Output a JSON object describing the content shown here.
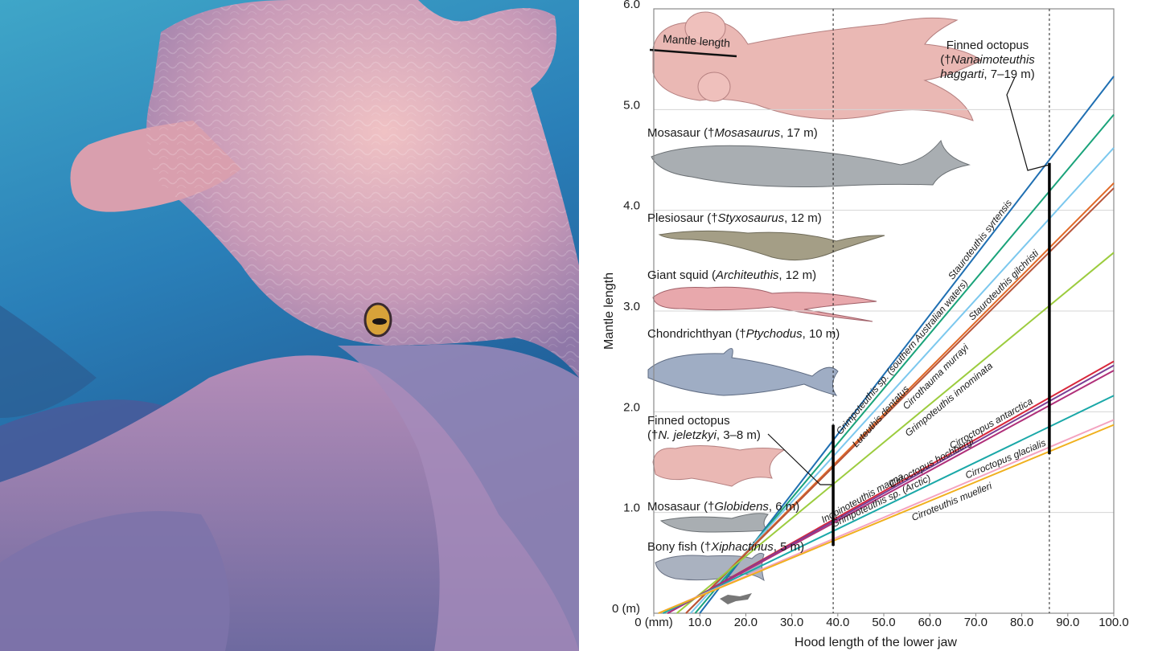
{
  "chart_data": {
    "type": "line",
    "y_label": "Mantle length",
    "x_label": "Hood length of the lower jaw",
    "mantle_annotation": "Mantle length",
    "xlim": [
      0,
      100
    ],
    "ylim": [
      0,
      6
    ],
    "xticks": [
      {
        "value": 0,
        "label": "0 (mm)"
      },
      {
        "value": 10,
        "label": "10.0"
      },
      {
        "value": 20,
        "label": "20.0"
      },
      {
        "value": 30,
        "label": "30.0"
      },
      {
        "value": 40,
        "label": "40.0"
      },
      {
        "value": 50,
        "label": "50.0"
      },
      {
        "value": 60,
        "label": "60.0"
      },
      {
        "value": 70,
        "label": "70.0"
      },
      {
        "value": 80,
        "label": "80.0"
      },
      {
        "value": 90,
        "label": "90.0"
      },
      {
        "value": 100,
        "label": "100.0"
      }
    ],
    "yticks": [
      {
        "value": 0,
        "label": "0 (m)"
      },
      {
        "value": 1,
        "label": "1.0"
      },
      {
        "value": 2,
        "label": "2.0"
      },
      {
        "value": 3,
        "label": "3.0"
      },
      {
        "value": 4,
        "label": "4.0"
      },
      {
        "value": 5,
        "label": "5.0"
      },
      {
        "value": 6,
        "label": "6.0"
      }
    ],
    "grid": true,
    "series": [
      {
        "name": "Stauroteuthis syrtensis",
        "color": "#1f6fb2",
        "x": [
          10,
          100
        ],
        "values": [
          0,
          5.33
        ]
      },
      {
        "name": "Grimpoteuthis sp. (southern Australian waters)",
        "color": "#1aa37a",
        "x": [
          9,
          100
        ],
        "values": [
          0,
          4.95
        ]
      },
      {
        "name": "Luteuthis dentatus",
        "color": "#7cc8ee",
        "x": [
          8,
          100
        ],
        "values": [
          0,
          4.62
        ]
      },
      {
        "name": "Stauroteuthis gilchristi",
        "color": "#e06a28",
        "x": [
          7,
          100
        ],
        "values": [
          0,
          4.27
        ]
      },
      {
        "name": "Cirrothauma murrayi",
        "color": "#b8553a",
        "x": [
          7,
          100
        ],
        "values": [
          0,
          4.22
        ]
      },
      {
        "name": "Grimpoteuthis innominata",
        "color": "#9ccc3e",
        "x": [
          5,
          100
        ],
        "values": [
          0,
          3.58
        ]
      },
      {
        "name": "Cirroctopus antarctica",
        "color": "#d8283c",
        "x": [
          3,
          100
        ],
        "values": [
          0,
          2.5
        ]
      },
      {
        "name": "Inopinoteuthis magna",
        "color": "#7a3f96",
        "x": [
          3,
          100
        ],
        "values": [
          0,
          2.46
        ]
      },
      {
        "name": "Cirroctopus hochbergi",
        "color": "#b0307a",
        "x": [
          3,
          100
        ],
        "values": [
          0,
          2.41
        ]
      },
      {
        "name": "Grimpoteuthis sp. (Arctic)",
        "color": "#1aa8a8",
        "x": [
          2,
          100
        ],
        "values": [
          0,
          2.16
        ]
      },
      {
        "name": "Cirroctopus glacialis",
        "color": "#f4a3c0",
        "x": [
          1,
          100
        ],
        "values": [
          0,
          1.92
        ]
      },
      {
        "name": "Cirroteuthis muelleri",
        "color": "#f0b01e",
        "x": [
          1,
          100
        ],
        "values": [
          0,
          1.87
        ]
      }
    ],
    "ranges": [
      {
        "x": 39,
        "low": 0.67,
        "high": 1.87
      },
      {
        "x": 86,
        "low": 1.58,
        "high": 4.47
      }
    ],
    "reference_animals": [
      {
        "lines": [
          [
            "Finned octopus"
          ],
          [
            "(†",
            {
              "italic": "Nanaimoteuthis"
            }
          ],
          [
            {
              "italic": "haggarti"
            },
            ", 7–19 m)"
          ]
        ]
      },
      {
        "lines": [
          [
            "Mosasaur (†",
            {
              "italic": "Mosasaurus"
            },
            ", 17 m)"
          ]
        ]
      },
      {
        "lines": [
          [
            "Plesiosaur (†",
            {
              "italic": "Styxosaurus"
            },
            ", 12 m)"
          ]
        ]
      },
      {
        "lines": [
          [
            "Giant squid (",
            {
              "italic": "Architeuthis"
            },
            ", 12 m)"
          ]
        ]
      },
      {
        "lines": [
          [
            "Chondrichthyan (†",
            {
              "italic": "Ptychodus"
            },
            ", 10 m)"
          ]
        ]
      },
      {
        "lines": [
          [
            "Finned octopus"
          ],
          [
            "(†",
            {
              "italic": "N. jeletzkyi"
            },
            ", 3–8 m)"
          ]
        ]
      },
      {
        "lines": [
          [
            "Mosasaur (†",
            {
              "italic": "Globidens"
            },
            ", 6 m)"
          ]
        ]
      },
      {
        "lines": [
          [
            "Bony fish (†",
            {
              "italic": "Xiphactinus"
            },
            ", 5 m)"
          ]
        ]
      }
    ]
  }
}
